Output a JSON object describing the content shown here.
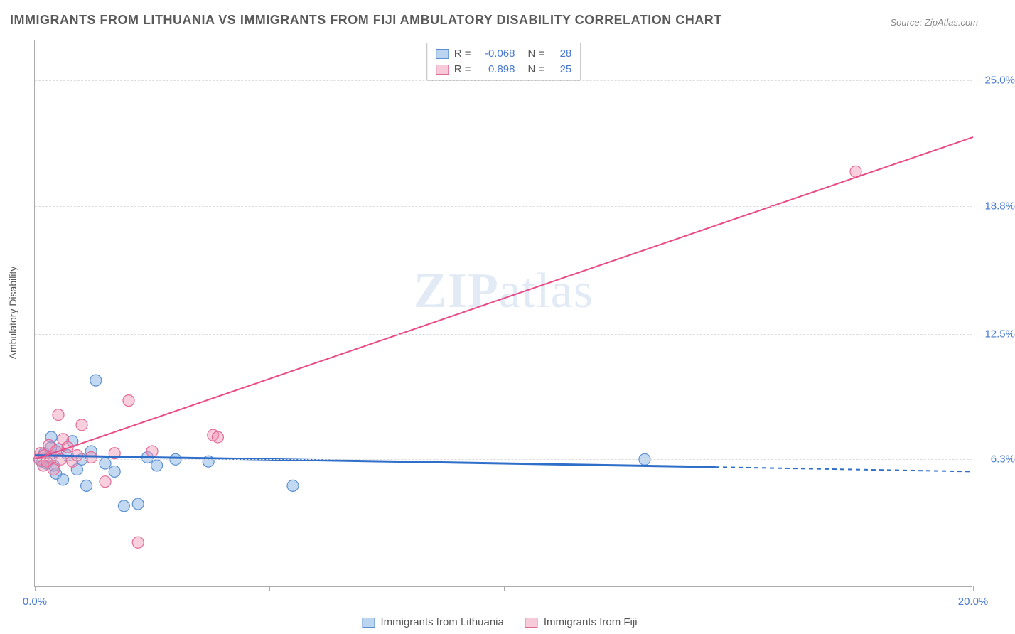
{
  "title": "IMMIGRANTS FROM LITHUANIA VS IMMIGRANTS FROM FIJI AMBULATORY DISABILITY CORRELATION CHART",
  "source": "Source: ZipAtlas.com",
  "watermark_a": "ZIP",
  "watermark_b": "atlas",
  "chart": {
    "type": "scatter+regression",
    "background_color": "#ffffff",
    "grid_color": "#dddddd",
    "axis_color": "#aaaaaa",
    "label_color": "#555555",
    "tick_color": "#4a7bd0",
    "xlim": [
      0,
      20
    ],
    "ylim": [
      0,
      27
    ],
    "yticks": [
      {
        "v": 6.3,
        "label": "6.3%"
      },
      {
        "v": 12.5,
        "label": "12.5%"
      },
      {
        "v": 18.8,
        "label": "18.8%"
      },
      {
        "v": 25.0,
        "label": "25.0%"
      }
    ],
    "xtick_labels": {
      "min": "0.0%",
      "max": "20.0%"
    },
    "xtick_marks": [
      0,
      5,
      10,
      15,
      20
    ],
    "ylabel": "Ambulatory Disability",
    "marker_radius": 8,
    "marker_stroke_width": 1.2,
    "line_width": 2,
    "series": [
      {
        "name": "Immigrants from Lithuania",
        "color_fill": "rgba(120,170,225,0.45)",
        "color_stroke": "#5b8fd0",
        "line_color": "#2f6fc9",
        "R": "-0.068",
        "N": "28",
        "points": [
          [
            0.1,
            6.3
          ],
          [
            0.15,
            6.2
          ],
          [
            0.2,
            6.6
          ],
          [
            0.25,
            6.1
          ],
          [
            0.3,
            6.4
          ],
          [
            0.35,
            6.9
          ],
          [
            0.4,
            6.0
          ],
          [
            0.45,
            5.6
          ],
          [
            0.5,
            6.8
          ],
          [
            0.6,
            5.3
          ],
          [
            0.7,
            6.5
          ],
          [
            0.8,
            7.2
          ],
          [
            0.9,
            5.8
          ],
          [
            1.0,
            6.3
          ],
          [
            1.1,
            5.0
          ],
          [
            1.2,
            6.7
          ],
          [
            1.3,
            10.2
          ],
          [
            1.5,
            6.1
          ],
          [
            1.7,
            5.7
          ],
          [
            1.9,
            4.0
          ],
          [
            2.2,
            4.1
          ],
          [
            2.4,
            6.4
          ],
          [
            2.6,
            6.0
          ],
          [
            3.0,
            6.3
          ],
          [
            3.7,
            6.2
          ],
          [
            5.5,
            5.0
          ],
          [
            13.0,
            6.3
          ],
          [
            0.35,
            7.4
          ]
        ],
        "trend": {
          "x1": 0,
          "y1": 6.5,
          "x2": 20,
          "y2": 5.7,
          "dash_after_x": 14.5
        }
      },
      {
        "name": "Immigrants from Fiji",
        "color_fill": "rgba(240,150,180,0.45)",
        "color_stroke": "#e66a98",
        "line_color": "#e94b86",
        "R": "0.898",
        "N": "25",
        "points": [
          [
            0.1,
            6.3
          ],
          [
            0.12,
            6.6
          ],
          [
            0.18,
            6.0
          ],
          [
            0.2,
            6.5
          ],
          [
            0.25,
            6.2
          ],
          [
            0.3,
            7.0
          ],
          [
            0.35,
            6.4
          ],
          [
            0.4,
            5.8
          ],
          [
            0.45,
            6.7
          ],
          [
            0.5,
            8.5
          ],
          [
            0.55,
            6.3
          ],
          [
            0.6,
            7.3
          ],
          [
            0.7,
            6.9
          ],
          [
            0.8,
            6.2
          ],
          [
            0.9,
            6.5
          ],
          [
            1.0,
            8.0
          ],
          [
            1.2,
            6.4
          ],
          [
            1.5,
            5.2
          ],
          [
            1.7,
            6.6
          ],
          [
            2.0,
            9.2
          ],
          [
            2.2,
            2.2
          ],
          [
            2.5,
            6.7
          ],
          [
            3.8,
            7.5
          ],
          [
            3.9,
            7.4
          ],
          [
            17.5,
            20.5
          ]
        ],
        "trend": {
          "x1": 0,
          "y1": 6.3,
          "x2": 20,
          "y2": 22.2
        }
      }
    ]
  },
  "legend_labels": {
    "r_label": "R =",
    "n_label": "N ="
  }
}
